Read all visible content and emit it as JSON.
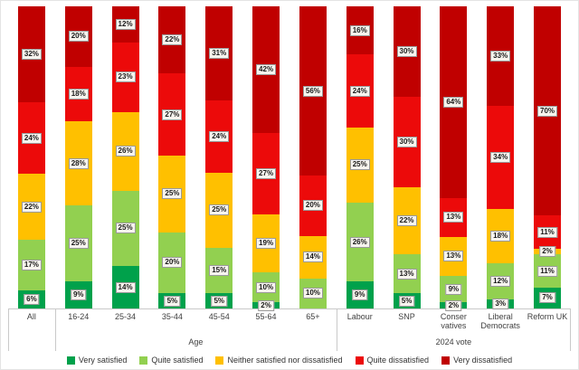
{
  "chart_data": {
    "type": "bar",
    "stacked": true,
    "orientation": "vertical",
    "title": "",
    "value_suffix": "%",
    "ylim": [
      0,
      100
    ],
    "grid": false,
    "legend_position": "bottom",
    "categories": [
      "All",
      "16-24",
      "25-34",
      "35-44",
      "45-54",
      "55-64",
      "65+",
      "Labour",
      "SNP",
      "Conser vatives",
      "Liberal Democrats",
      "Reform UK"
    ],
    "groups": [
      {
        "label": "Age",
        "start": 1,
        "end": 6
      },
      {
        "label": "2024 vote",
        "start": 7,
        "end": 11
      }
    ],
    "series": [
      {
        "name": "Very satisfied",
        "color": "#00A14B",
        "values": [
          6,
          9,
          14,
          5,
          5,
          2,
          0,
          9,
          5,
          2,
          3,
          7
        ]
      },
      {
        "name": "Quite satisfied",
        "color": "#92D050",
        "values": [
          17,
          25,
          25,
          20,
          15,
          10,
          10,
          26,
          13,
          9,
          12,
          11
        ]
      },
      {
        "name": "Neither satisfied nor dissatisfied",
        "color": "#FFC000",
        "values": [
          22,
          28,
          26,
          25,
          25,
          19,
          14,
          25,
          22,
          13,
          18,
          2
        ]
      },
      {
        "name": "Quite dissatisfied",
        "color": "#EC0A0A",
        "values": [
          24,
          18,
          23,
          27,
          24,
          27,
          20,
          24,
          30,
          13,
          34,
          11
        ]
      },
      {
        "name": "Very dissatisfied",
        "color": "#C00000",
        "values": [
          32,
          20,
          12,
          22,
          31,
          42,
          56,
          16,
          30,
          64,
          33,
          70
        ]
      }
    ]
  },
  "colors": {
    "axis_line": "#c9c9c9",
    "label_box_bg": "#f7f4ee",
    "label_box_border": "#9a9a9a",
    "axis_text": "#404040"
  }
}
